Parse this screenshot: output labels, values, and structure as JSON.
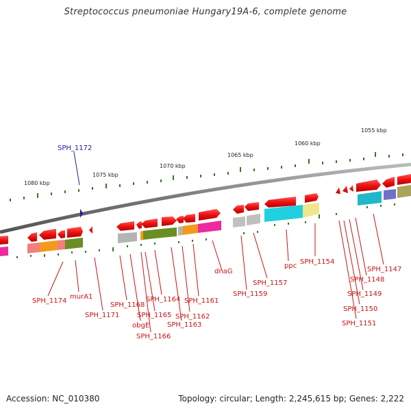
{
  "title": "Streptococcus pneumoniae Hungary19A-6, complete genome",
  "footer": {
    "accession": "Accession: NC_010380",
    "summary": "Topology: circular; Length: 2,245,615 bp; Genes: 2,222"
  },
  "colors": {
    "backbone": "#7a7a7a",
    "gene": "#ee1111",
    "label_red": "#cc1111",
    "label_blue": "#1a1aa0",
    "tick": "#2e7a1e"
  },
  "scale_labels": [
    "1055 kbp",
    "1060 kbp",
    "1065 kbp",
    "1070 kbp",
    "1075 kbp",
    "1080 kbp"
  ],
  "gene_labels": [
    "SPH_1147",
    "SPH_1148",
    "SPH_1149",
    "SPH_1150",
    "SPH_1151",
    "SPH_1154",
    "ppc",
    "SPH_1157",
    "SPH_1159",
    "dnaG",
    "SPH_1161",
    "SPH_1162",
    "SPH_1163",
    "SPH_1164",
    "SPH_1165",
    "SPH_1166",
    "obgE",
    "SPH_1168",
    "SPH_1171",
    "murA1",
    "SPH_1174",
    "SPH_1172"
  ]
}
